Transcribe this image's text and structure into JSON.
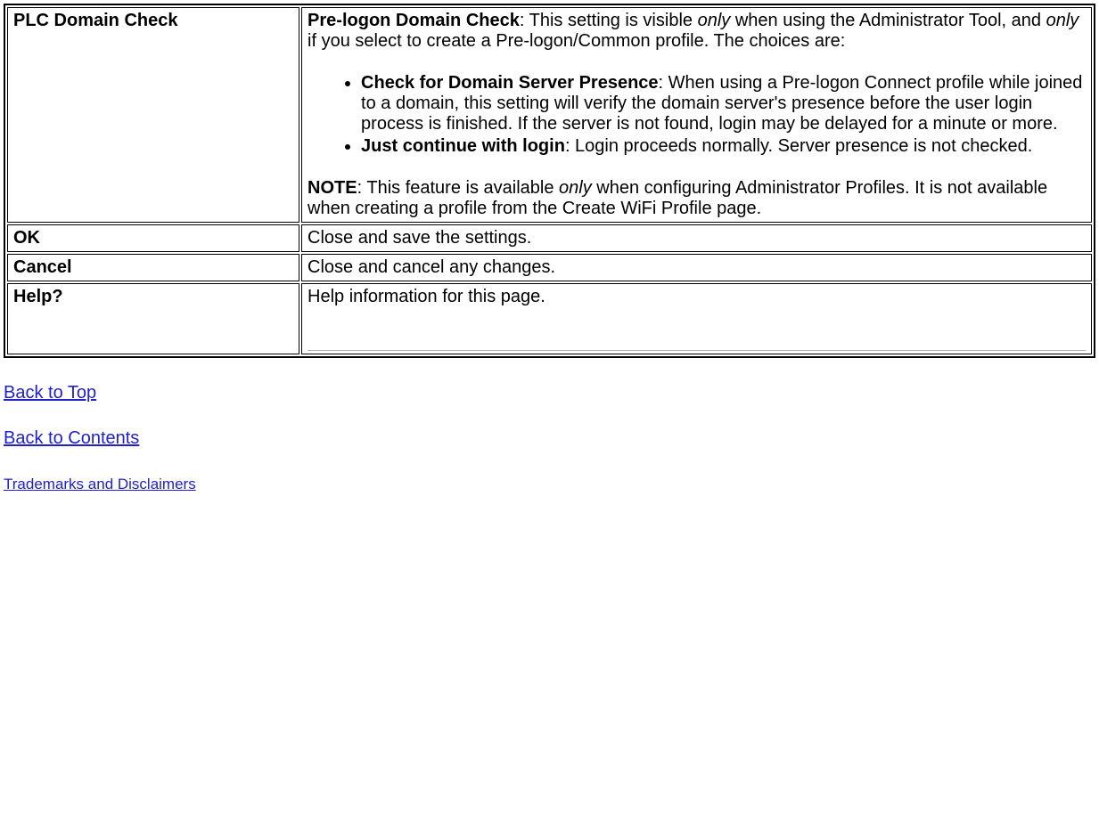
{
  "rows": {
    "plc": {
      "left": "PLC Domain Check",
      "intro_bold": "Pre-logon Domain Check",
      "intro_1": ": This setting is visible ",
      "intro_only1": "only",
      "intro_2": " when using the Administrator Tool, and ",
      "intro_only2": "only",
      "intro_3": " if you select to create a Pre-logon/Common profile. The choices are:",
      "bullet1_bold": "Check for Domain Server Presence",
      "bullet1_rest": ": When using a Pre-logon Connect profile while joined to a domain, this setting will verify the domain server's presence before the user login process is finished. If the server is not found, login may be delayed for a minute or more.",
      "bullet2_bold": "Just continue with login",
      "bullet2_rest": ": Login proceeds normally. Server presence is not checked.",
      "note_bold": "NOTE",
      "note_1": ": This feature is available ",
      "note_only": "only",
      "note_2": " when configuring Administrator Profiles. It is not available when creating a profile from the Create WiFi Profile page."
    },
    "ok": {
      "left": "OK",
      "right": "Close and save the settings."
    },
    "cancel": {
      "left": "Cancel",
      "right": "Close and cancel any changes."
    },
    "help": {
      "left": "Help?",
      "right": "Help information for this page."
    }
  },
  "links": {
    "back_top": "Back to Top",
    "back_contents": "Back to Contents",
    "trademarks": "Trademarks and Disclaimers"
  }
}
